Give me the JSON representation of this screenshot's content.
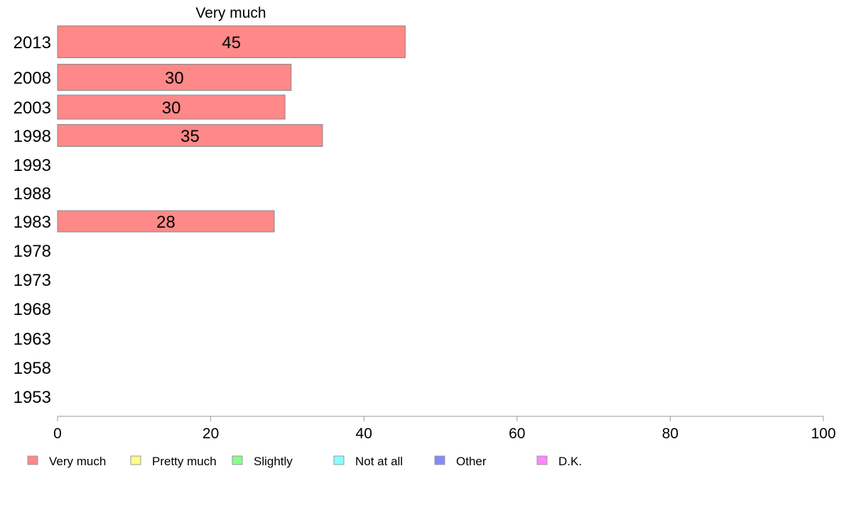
{
  "chart_data": {
    "type": "bar",
    "orientation": "horizontal",
    "series_title": "Very much",
    "categories": [
      "2013",
      "2008",
      "2003",
      "1998",
      "1993",
      "1988",
      "1983",
      "1978",
      "1973",
      "1968",
      "1963",
      "1958",
      "1953"
    ],
    "series": [
      {
        "name": "Very much",
        "values": [
          45.4,
          30.5,
          29.7,
          34.6,
          null,
          null,
          28.3,
          null,
          null,
          null,
          null,
          null,
          null
        ],
        "data_labels": [
          "45",
          "30",
          "30",
          "35",
          "",
          "",
          "28",
          "",
          "",
          "",
          "",
          "",
          ""
        ]
      }
    ],
    "xlim": [
      0,
      100
    ],
    "xticks": [
      0,
      20,
      40,
      60,
      80,
      100
    ],
    "xtick_labels": [
      "0",
      "20",
      "40",
      "60",
      "80",
      "100"
    ],
    "grid": false,
    "legend_position": "bottom",
    "legend": [
      {
        "label": "Very much",
        "color": "#ff8888"
      },
      {
        "label": "Pretty much",
        "color": "#ffff88"
      },
      {
        "label": "Slightly",
        "color": "#88ff88"
      },
      {
        "label": "Not at all",
        "color": "#88ffff"
      },
      {
        "label": "Other",
        "color": "#8888ff"
      },
      {
        "label": "D.K.",
        "color": "#ff88ff"
      }
    ],
    "bar_color": "#ff8888",
    "bar_edge_color": "#888888",
    "axis_color": "#999999"
  }
}
